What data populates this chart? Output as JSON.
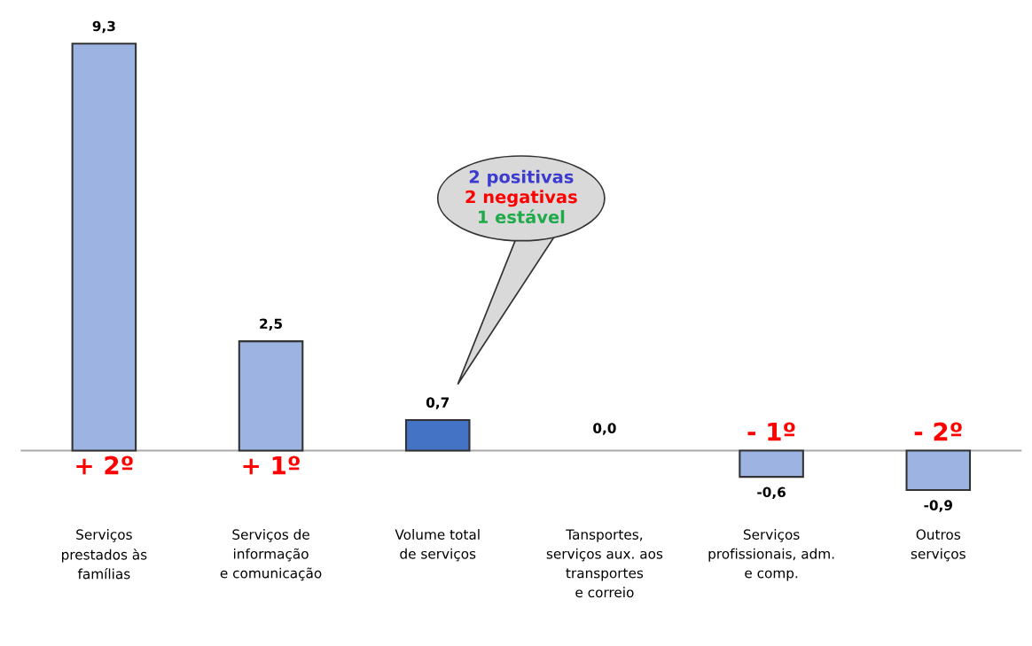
{
  "chart_data": {
    "type": "bar",
    "categories": [
      "Serviços\nprestados às\nfamílias",
      "Serviços de\ninformação\ne comunicação",
      "Volume total\nde serviços",
      "Tansportes,\nserviços aux. aos\ntransportes\ne correio",
      "Serviços\nprofissionais, adm.\ne comp.",
      "Outros\nserviços"
    ],
    "values": [
      9.3,
      2.5,
      0.7,
      0.0,
      -0.6,
      -0.9
    ],
    "value_labels": [
      "9,3",
      "2,5",
      "0,7",
      "0,0",
      "-0,6",
      "-0,9"
    ],
    "colors": [
      "#9db4e2",
      "#9db4e2",
      "#4472c4",
      "#9db4e2",
      "#9db4e2",
      "#9db4e2"
    ],
    "annotations": [
      {
        "text": "+ 2º",
        "x": "Serviços\nprestados às\nfamílias",
        "y": 0
      },
      {
        "text": "+ 1º",
        "x": "Serviços de\ninformação\ne comunicação",
        "y": 0
      },
      {
        "text": "- 1º",
        "x": "Serviços\nprofissionais, adm.\ne comp.",
        "y": 0
      },
      {
        "text": "- 2º",
        "x": "Outros\nserviços",
        "y": 0
      },
      "2 positivas",
      "2 negativas",
      "1 estável"
    ]
  }
}
